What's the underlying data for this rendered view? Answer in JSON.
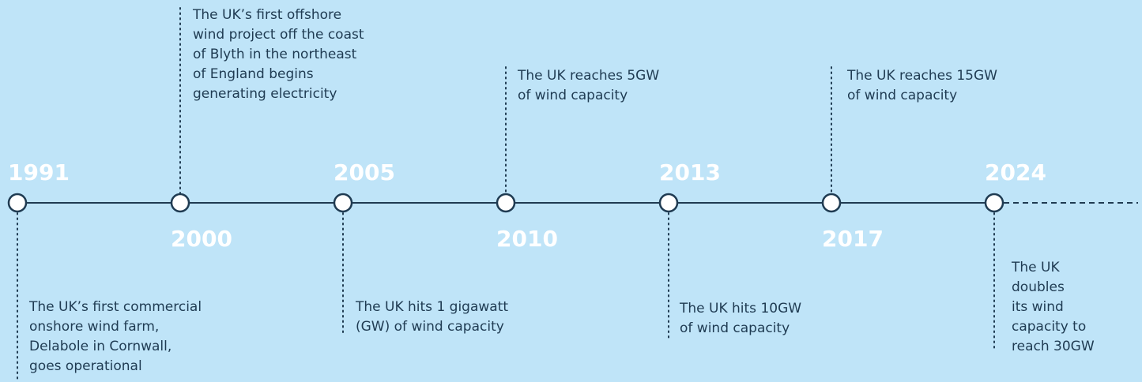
{
  "events": [
    {
      "year": "1991",
      "text": [
        "The UK’s first commercial",
        "onshore wind farm,",
        "Delabole in Cornwall,",
        "goes operational"
      ]
    },
    {
      "year": "2000",
      "text": [
        "The UK’s first offshore",
        "wind project off the coast",
        "of Blyth in the northeast",
        "of England begins",
        "generating electricity"
      ]
    },
    {
      "year": "2005",
      "text": [
        "The UK hits 1 gigawatt",
        "(GW) of wind capacity"
      ]
    },
    {
      "year": "2010",
      "text": [
        "The UK reaches 5GW",
        "of wind capacity"
      ]
    },
    {
      "year": "2013",
      "text": [
        "The UK hits 10GW",
        "of wind capacity"
      ]
    },
    {
      "year": "2017",
      "text": [
        "The UK reaches 15GW",
        "of wind capacity"
      ]
    },
    {
      "year": "2024",
      "text": [
        "The UK",
        "doubles",
        "its wind",
        "capacity to",
        "reach 30GW"
      ]
    }
  ]
}
